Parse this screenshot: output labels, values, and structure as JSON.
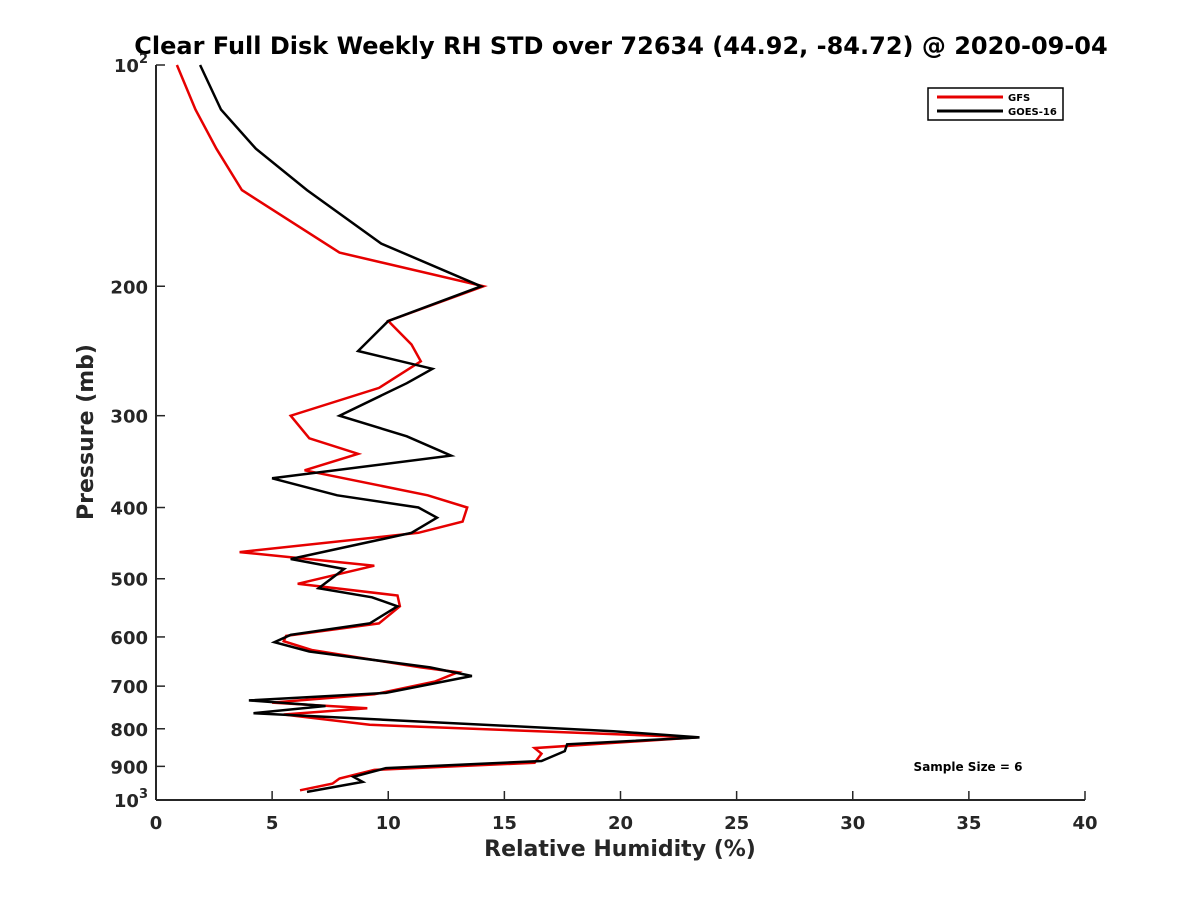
{
  "chart_data": {
    "type": "line",
    "title": "Clear Full Disk Weekly RH STD over 72634 (44.92, -84.72) @ 2020-09-04",
    "xlabel": "Relative Humidity (%)",
    "ylabel": "Pressure (mb)",
    "xlim": [
      0,
      40
    ],
    "ylim": [
      100,
      1000
    ],
    "yscale": "log",
    "yreversed": true,
    "xticks": [
      0,
      5,
      10,
      15,
      20,
      25,
      30,
      35,
      40
    ],
    "xtick_labels": [
      "0",
      "5",
      "10",
      "15",
      "20",
      "25",
      "30",
      "35",
      "40"
    ],
    "yticks": [
      100,
      200,
      300,
      400,
      500,
      600,
      700,
      800,
      900,
      1000
    ],
    "ytick_labels": [
      {
        "base": "10",
        "exp": "2"
      },
      {
        "base": "200",
        "exp": ""
      },
      {
        "base": "300",
        "exp": ""
      },
      {
        "base": "400",
        "exp": ""
      },
      {
        "base": "500",
        "exp": ""
      },
      {
        "base": "600",
        "exp": ""
      },
      {
        "base": "700",
        "exp": ""
      },
      {
        "base": "800",
        "exp": ""
      },
      {
        "base": "900",
        "exp": ""
      },
      {
        "base": "10",
        "exp": "3"
      }
    ],
    "legend_position": "top-right",
    "annotation": "Sample Size = 6",
    "series": [
      {
        "name": "GFS",
        "color": "#e60000",
        "points": [
          [
            0.9,
            100
          ],
          [
            1.7,
            115
          ],
          [
            2.6,
            130
          ],
          [
            3.7,
            148
          ],
          [
            7.9,
            180
          ],
          [
            14.1,
            200
          ],
          [
            10.0,
            223
          ],
          [
            11.0,
            240
          ],
          [
            11.4,
            253
          ],
          [
            9.6,
            275
          ],
          [
            5.8,
            300
          ],
          [
            6.6,
            322
          ],
          [
            8.7,
            338
          ],
          [
            6.4,
            356
          ],
          [
            11.7,
            385
          ],
          [
            13.4,
            400
          ],
          [
            13.2,
            418
          ],
          [
            11.3,
            433
          ],
          [
            3.6,
            460
          ],
          [
            9.4,
            480
          ],
          [
            6.1,
            508
          ],
          [
            10.4,
            527
          ],
          [
            10.5,
            545
          ],
          [
            9.6,
            575
          ],
          [
            5.6,
            598
          ],
          [
            5.5,
            608
          ],
          [
            6.7,
            625
          ],
          [
            11.4,
            660
          ],
          [
            13.0,
            670
          ],
          [
            12.0,
            690
          ],
          [
            9.4,
            718
          ],
          [
            5.0,
            737
          ],
          [
            9.1,
            750
          ],
          [
            5.5,
            765
          ],
          [
            9.2,
            790
          ],
          [
            23.3,
            822
          ],
          [
            16.3,
            850
          ],
          [
            16.6,
            865
          ],
          [
            16.3,
            890
          ],
          [
            9.4,
            910
          ],
          [
            7.9,
            935
          ],
          [
            7.6,
            950
          ],
          [
            6.2,
            970
          ]
        ]
      },
      {
        "name": "GOES-16",
        "color": "#000000",
        "points": [
          [
            1.9,
            100
          ],
          [
            2.8,
            115
          ],
          [
            4.3,
            130
          ],
          [
            6.5,
            148
          ],
          [
            9.7,
            175
          ],
          [
            14.0,
            200
          ],
          [
            10.0,
            223
          ],
          [
            8.7,
            245
          ],
          [
            11.9,
            259
          ],
          [
            10.8,
            271
          ],
          [
            7.9,
            300
          ],
          [
            10.8,
            320
          ],
          [
            12.7,
            340
          ],
          [
            5.0,
            365
          ],
          [
            7.8,
            385
          ],
          [
            11.3,
            400
          ],
          [
            12.1,
            413
          ],
          [
            11.0,
            433
          ],
          [
            5.8,
            470
          ],
          [
            8.1,
            485
          ],
          [
            7.0,
            515
          ],
          [
            9.3,
            530
          ],
          [
            10.4,
            545
          ],
          [
            9.2,
            575
          ],
          [
            5.8,
            596
          ],
          [
            5.1,
            610
          ],
          [
            6.6,
            628
          ],
          [
            11.8,
            660
          ],
          [
            13.6,
            678
          ],
          [
            9.9,
            715
          ],
          [
            4.0,
            732
          ],
          [
            7.3,
            745
          ],
          [
            4.2,
            762
          ],
          [
            19.7,
            806
          ],
          [
            23.4,
            822
          ],
          [
            17.7,
            840
          ],
          [
            17.6,
            858
          ],
          [
            16.6,
            885
          ],
          [
            9.9,
            905
          ],
          [
            8.5,
            930
          ],
          [
            8.9,
            945
          ],
          [
            6.5,
            975
          ]
        ]
      }
    ]
  }
}
